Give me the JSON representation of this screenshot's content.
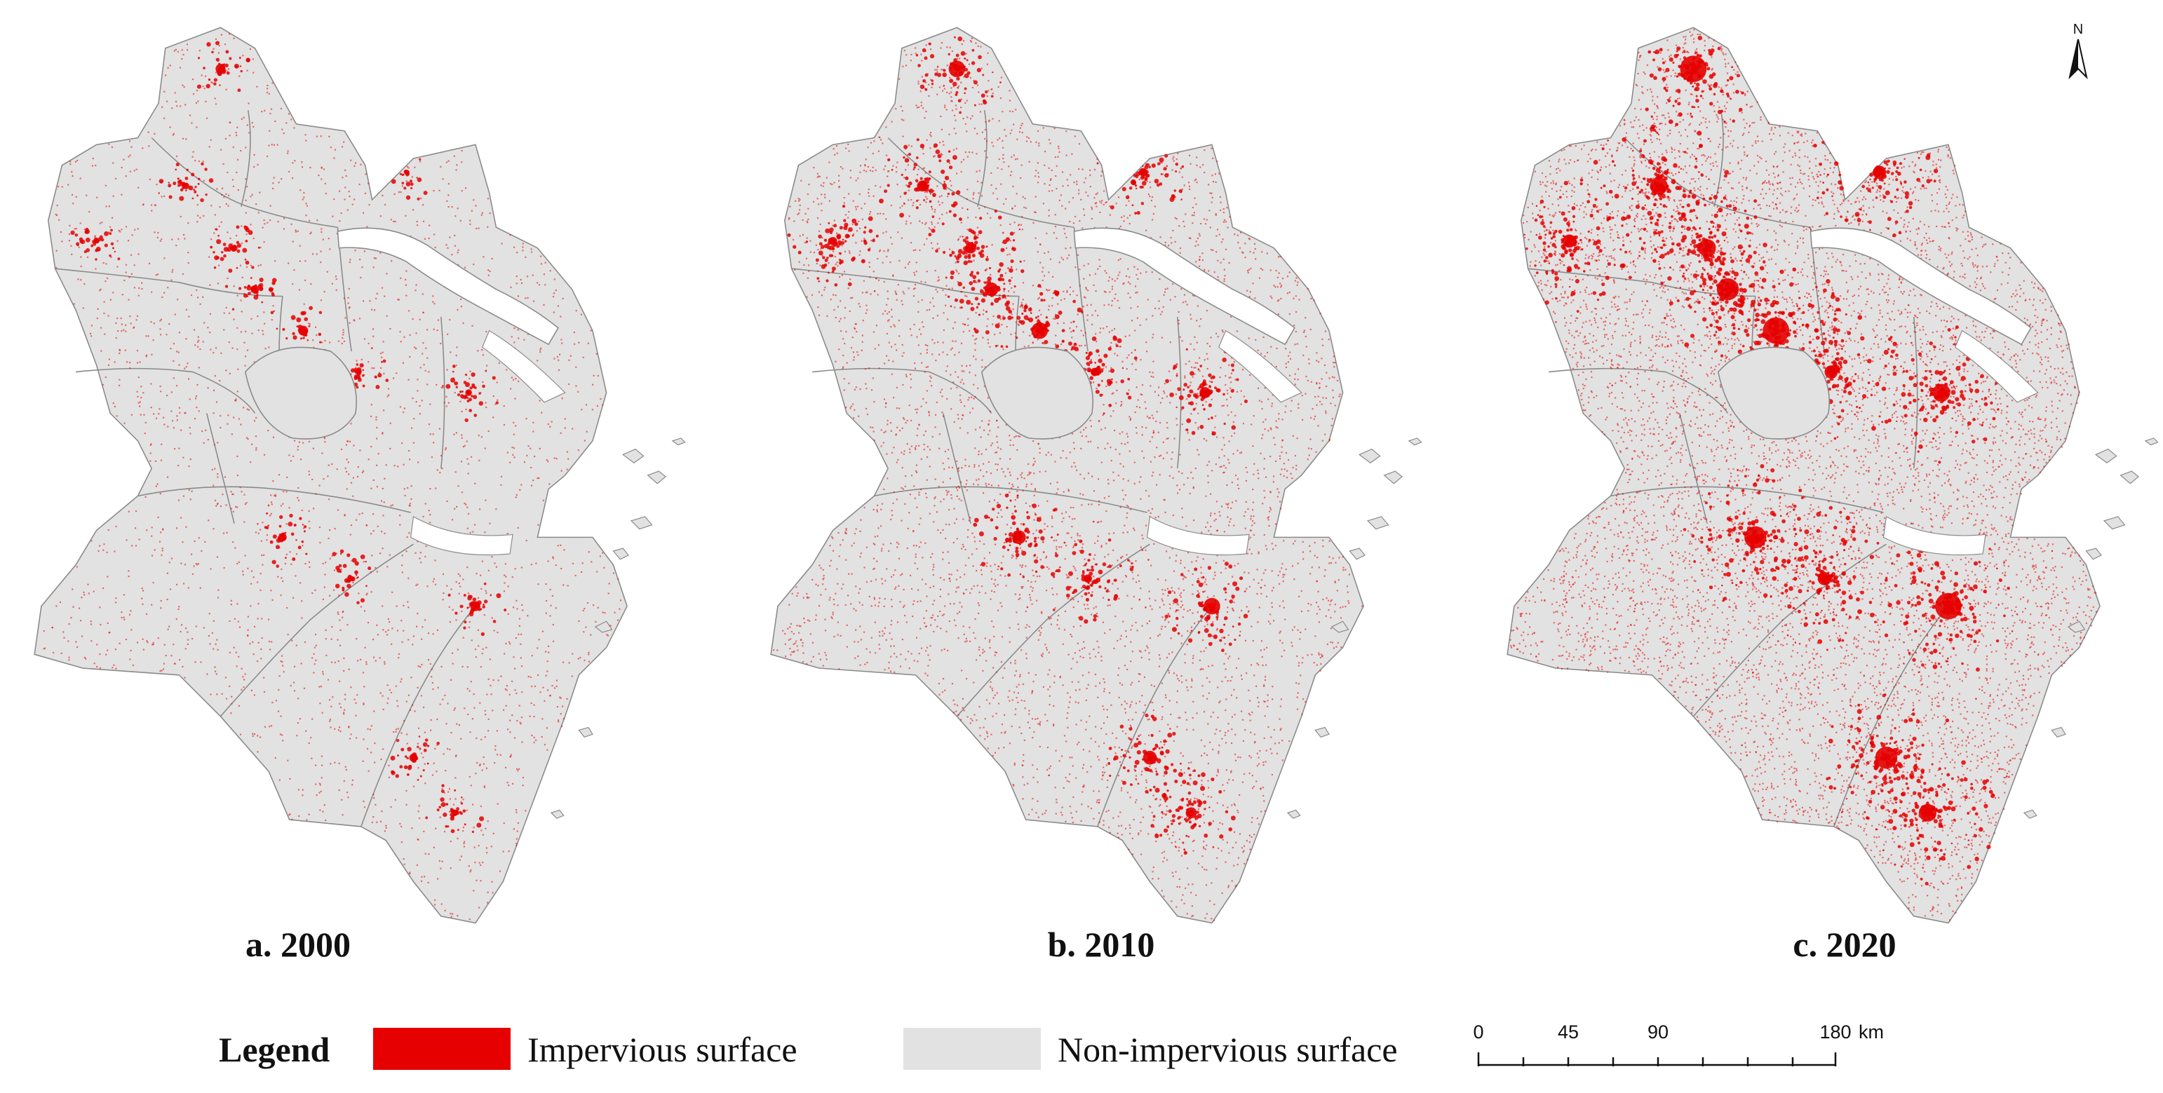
{
  "panels": [
    {
      "label": "a. 2000"
    },
    {
      "label": "b. 2010"
    },
    {
      "label": "c. 2020"
    }
  ],
  "north_arrow": {
    "letter": "N"
  },
  "legend": {
    "title": "Legend",
    "items": [
      {
        "label": "Impervious surface",
        "color": "#e60000"
      },
      {
        "label": "Non-impervious surface",
        "color": "#e2e2e2"
      }
    ]
  },
  "scale_bar": {
    "ticks": [
      "0",
      "45",
      "90",
      "180"
    ],
    "unit": "km"
  },
  "colors": {
    "impervious": "#e60000",
    "land": "#e2e2e2",
    "boundary": "#8a8a8a",
    "water": "#ffffff"
  }
}
